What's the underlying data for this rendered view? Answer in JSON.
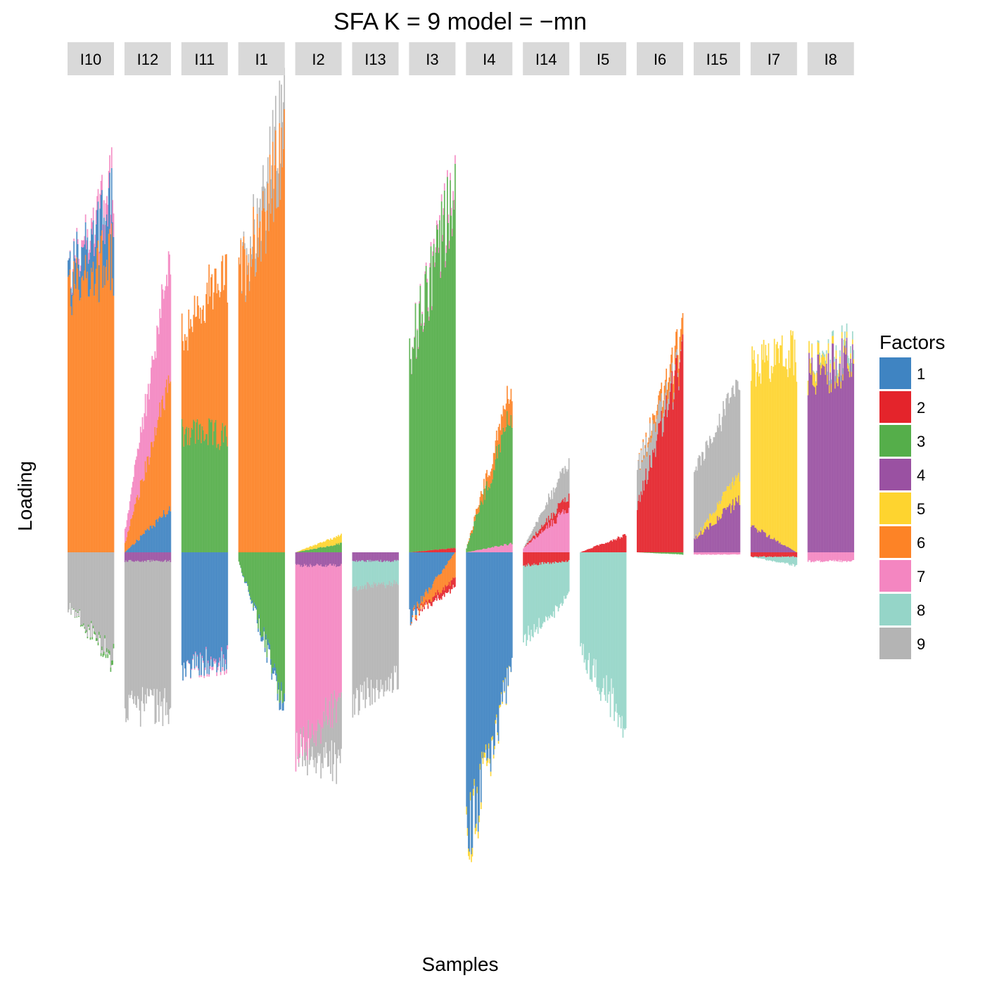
{
  "chart_data": {
    "type": "bar",
    "title": "SFA K = 9 model =  −mn",
    "xlabel": "Samples",
    "ylabel": "Loading",
    "ylim": [
      -0.72,
      1.0
    ],
    "grid": false,
    "legend": {
      "title": "Factors",
      "position": "right",
      "entries": [
        "1",
        "2",
        "3",
        "4",
        "5",
        "6",
        "7",
        "8",
        "9"
      ]
    },
    "factor_colors": {
      "1": "#3f84c2",
      "2": "#e4242b",
      "3": "#55ae4a",
      "4": "#9a51a2",
      "5": "#fed42f",
      "6": "#fd8326",
      "7": "#f486c1",
      "8": "#95d5c8",
      "9": "#b4b4b4"
    },
    "panels": [
      {
        "label": "I10",
        "n": 48,
        "pos": [
          {
            "f": "6",
            "a": 0.6,
            "b": 0.66
          },
          {
            "f": "1",
            "a": 0.04,
            "b": 0.12
          },
          {
            "f": "7",
            "a": 0.0,
            "b": 0.05
          }
        ],
        "neg": [
          {
            "f": "9",
            "a": 0.12,
            "b": 0.24
          },
          {
            "f": "3",
            "a": 0.0,
            "b": 0.01
          }
        ]
      },
      {
        "label": "I12",
        "n": 48,
        "pos": [
          {
            "f": "1",
            "a": 0.0,
            "b": 0.1
          },
          {
            "f": "6",
            "a": 0.02,
            "b": 0.3
          },
          {
            "f": "7",
            "a": 0.03,
            "b": 0.28
          }
        ],
        "neg": [
          {
            "f": "4",
            "a": 0.02,
            "b": 0.02
          },
          {
            "f": "9",
            "a": 0.33,
            "b": 0.33
          }
        ]
      },
      {
        "label": "I11",
        "n": 48,
        "pos": [
          {
            "f": "3",
            "a": 0.28,
            "b": 0.26
          },
          {
            "f": "6",
            "a": 0.22,
            "b": 0.37
          }
        ],
        "neg": [
          {
            "f": "1",
            "a": 0.26,
            "b": 0.24
          },
          {
            "f": "7",
            "a": 0.0,
            "b": 0.01
          }
        ]
      },
      {
        "label": "I1",
        "n": 48,
        "pos": [
          {
            "f": "6",
            "a": 0.62,
            "b": 0.9
          },
          {
            "f": "9",
            "a": 0.0,
            "b": 0.1
          }
        ],
        "neg": [
          {
            "f": "3",
            "a": 0.02,
            "b": 0.34
          },
          {
            "f": "1",
            "a": 0.0,
            "b": 0.02
          }
        ]
      },
      {
        "label": "I2",
        "n": 48,
        "pos": [
          {
            "f": "3",
            "a": 0.0,
            "b": 0.02
          },
          {
            "f": "5",
            "a": 0.0,
            "b": 0.02
          }
        ],
        "neg": [
          {
            "f": "4",
            "a": 0.03,
            "b": 0.03
          },
          {
            "f": "7",
            "a": 0.44,
            "b": 0.3
          },
          {
            "f": "9",
            "a": 0.0,
            "b": 0.14
          }
        ]
      },
      {
        "label": "I13",
        "n": 48,
        "pos": [],
        "neg": [
          {
            "f": "4",
            "a": 0.02,
            "b": 0.02
          },
          {
            "f": "8",
            "a": 0.06,
            "b": 0.05
          },
          {
            "f": "9",
            "a": 0.26,
            "b": 0.22
          }
        ]
      },
      {
        "label": "I3",
        "n": 48,
        "pos": [
          {
            "f": "2",
            "a": 0.0,
            "b": 0.01
          },
          {
            "f": "3",
            "a": 0.45,
            "b": 0.82
          },
          {
            "f": "7",
            "a": 0.0,
            "b": 0.02
          }
        ],
        "neg": [
          {
            "f": "1",
            "a": 0.15,
            "b": 0.0
          },
          {
            "f": "6",
            "a": 0.0,
            "b": 0.06
          },
          {
            "f": "2",
            "a": 0.0,
            "b": 0.02
          }
        ]
      },
      {
        "label": "I4",
        "n": 48,
        "pos": [
          {
            "f": "7",
            "a": 0.0,
            "b": 0.02
          },
          {
            "f": "3",
            "a": 0.01,
            "b": 0.3
          },
          {
            "f": "6",
            "a": 0.0,
            "b": 0.06
          }
        ],
        "neg": [
          {
            "f": "1",
            "a": 0.66,
            "b": 0.26
          },
          {
            "f": "5",
            "a": 0.02,
            "b": 0.0
          }
        ]
      },
      {
        "label": "I14",
        "n": 48,
        "pos": [
          {
            "f": "7",
            "a": 0.01,
            "b": 0.1
          },
          {
            "f": "2",
            "a": 0.0,
            "b": 0.03
          },
          {
            "f": "9",
            "a": 0.0,
            "b": 0.08
          }
        ],
        "neg": [
          {
            "f": "2",
            "a": 0.03,
            "b": 0.02
          },
          {
            "f": "8",
            "a": 0.17,
            "b": 0.08
          }
        ]
      },
      {
        "label": "I5",
        "n": 48,
        "pos": [
          {
            "f": "2",
            "a": 0.0,
            "b": 0.04
          }
        ],
        "neg": [
          {
            "f": "8",
            "a": 0.23,
            "b": 0.38
          }
        ]
      },
      {
        "label": "I6",
        "n": 48,
        "pos": [
          {
            "f": "2",
            "a": 0.11,
            "b": 0.44
          },
          {
            "f": "9",
            "a": 0.09,
            "b": 0.0
          },
          {
            "f": "6",
            "a": 0.0,
            "b": 0.05
          }
        ],
        "neg": [
          {
            "f": "3",
            "a": 0.0,
            "b": 0.005
          }
        ]
      },
      {
        "label": "I15",
        "n": 48,
        "pos": [
          {
            "f": "4",
            "a": 0.03,
            "b": 0.12
          },
          {
            "f": "5",
            "a": 0.0,
            "b": 0.06
          },
          {
            "f": "9",
            "a": 0.15,
            "b": 0.2
          }
        ],
        "neg": [
          {
            "f": "7",
            "a": 0.005,
            "b": 0.005
          }
        ]
      },
      {
        "label": "I7",
        "n": 48,
        "pos": [
          {
            "f": "4",
            "a": 0.06,
            "b": 0.0
          },
          {
            "f": "5",
            "a": 0.36,
            "b": 0.45
          },
          {
            "f": "9",
            "a": 0.0,
            "b": 0.0
          }
        ],
        "neg": [
          {
            "f": "2",
            "a": 0.01,
            "b": 0.01
          },
          {
            "f": "8",
            "a": 0.0,
            "b": 0.02
          }
        ]
      },
      {
        "label": "I8",
        "n": 48,
        "pos": [
          {
            "f": "4",
            "a": 0.4,
            "b": 0.44
          },
          {
            "f": "5",
            "a": 0.03,
            "b": 0.01
          },
          {
            "f": "8",
            "a": 0.0,
            "b": 0.02
          }
        ],
        "neg": [
          {
            "f": "7",
            "a": 0.02,
            "b": 0.02
          }
        ]
      }
    ]
  }
}
